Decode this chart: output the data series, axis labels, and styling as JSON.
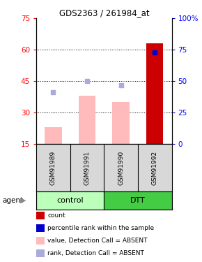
{
  "title": "GDS2363 / 261984_at",
  "samples": [
    "GSM91989",
    "GSM91991",
    "GSM91990",
    "GSM91992"
  ],
  "bar_values": [
    23,
    38,
    35,
    63
  ],
  "bar_colors": [
    "#ffbbbb",
    "#ffbbbb",
    "#ffbbbb",
    "#cc0000"
  ],
  "rank_dots": [
    41,
    50,
    47,
    73
  ],
  "rank_dot_colors": [
    "#aaaadd",
    "#aaaadd",
    "#aaaadd",
    "#0000cc"
  ],
  "ylim_left": [
    15,
    75
  ],
  "ylim_right": [
    0,
    100
  ],
  "yticks_left": [
    15,
    30,
    45,
    60,
    75
  ],
  "yticks_right": [
    0,
    25,
    50,
    75,
    100
  ],
  "ytick_labels_right": [
    "0",
    "25",
    "50",
    "75",
    "100%"
  ],
  "hgrid_at": [
    30,
    45,
    60
  ],
  "groups": [
    {
      "label": "control",
      "cols": [
        0,
        1
      ],
      "color": "#bbffbb"
    },
    {
      "label": "DTT",
      "cols": [
        2,
        3
      ],
      "color": "#44cc44"
    }
  ],
  "bg_color": "#d8d8d8",
  "plot_bg": "#ffffff",
  "bar_bottom": 15,
  "dot_size": 22,
  "legend_items": [
    {
      "color": "#cc0000",
      "label": "count"
    },
    {
      "color": "#0000cc",
      "label": "percentile rank within the sample"
    },
    {
      "color": "#ffbbbb",
      "label": "value, Detection Call = ABSENT"
    },
    {
      "color": "#aaaadd",
      "label": "rank, Detection Call = ABSENT"
    }
  ]
}
